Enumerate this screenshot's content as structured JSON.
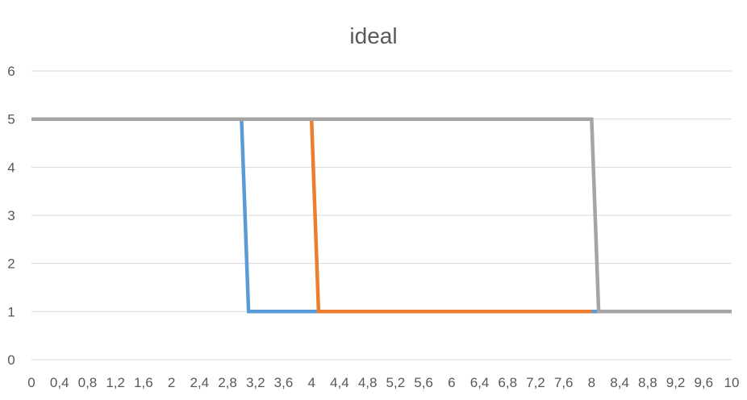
{
  "chart_data": {
    "type": "line",
    "title": "ideal",
    "xlim": [
      0,
      10
    ],
    "ylim": [
      0,
      6
    ],
    "grid": true,
    "legend": "none",
    "y_ticks": [
      "0",
      "1",
      "2",
      "3",
      "4",
      "5",
      "6"
    ],
    "x_ticks": [
      "0",
      "0,4",
      "0,8",
      "1,2",
      "1,6",
      "2",
      "2,4",
      "2,8",
      "3,2",
      "3,6",
      "4",
      "4,4",
      "4,8",
      "5,2",
      "5,6",
      "6",
      "6,4",
      "6,8",
      "7,2",
      "7,6",
      "8",
      "8,4",
      "8,8",
      "9,2",
      "9,6",
      "10"
    ],
    "series": [
      {
        "color": "#5b9bd5",
        "x": [
          0,
          3.0,
          3.1,
          10
        ],
        "y": [
          5,
          5,
          1,
          1
        ]
      },
      {
        "color": "#ed7d31",
        "x": [
          0,
          4.0,
          4.1,
          8.0
        ],
        "y": [
          5,
          5,
          1,
          1
        ]
      },
      {
        "color": "#a5a5a5",
        "x": [
          0,
          8.0,
          8.1,
          10
        ],
        "y": [
          5,
          5,
          1,
          1
        ]
      }
    ]
  }
}
